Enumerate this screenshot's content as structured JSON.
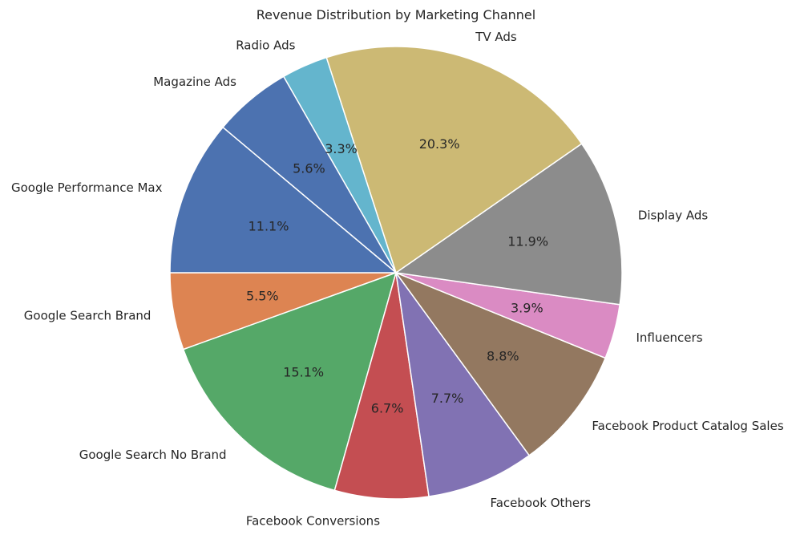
{
  "chart_data": {
    "type": "pie",
    "title": "Revenue Distribution by Marketing Channel",
    "start_angle_deg": 180,
    "direction": "counterclockwise",
    "slices": [
      {
        "label": "Google Search Brand",
        "value": 5.5,
        "pct_label": "5.5%",
        "color": "#dd8452"
      },
      {
        "label": "Google Search No Brand",
        "value": 15.1,
        "pct_label": "15.1%",
        "color": "#55a868"
      },
      {
        "label": "Facebook Conversions",
        "value": 6.7,
        "pct_label": "6.7%",
        "color": "#c44e52"
      },
      {
        "label": "Facebook Others",
        "value": 7.7,
        "pct_label": "7.7%",
        "color": "#8172b3"
      },
      {
        "label": "Facebook Product Catalog Sales",
        "value": 8.8,
        "pct_label": "8.8%",
        "color": "#937860"
      },
      {
        "label": "Influencers",
        "value": 3.9,
        "pct_label": "3.9%",
        "color": "#da8bc3"
      },
      {
        "label": "Display Ads",
        "value": 11.9,
        "pct_label": "11.9%",
        "color": "#8c8c8c"
      },
      {
        "label": "TV Ads",
        "value": 20.3,
        "pct_label": "20.3%",
        "color": "#ccb974"
      },
      {
        "label": "Radio Ads",
        "value": 3.3,
        "pct_label": "3.3%",
        "color": "#64b5cd"
      },
      {
        "label": "Magazine Ads",
        "value": 5.6,
        "pct_label": "5.6%",
        "color": "#4c72b0"
      },
      {
        "label": "Google Performance Max",
        "value": 11.1,
        "pct_label": "11.1%",
        "color": "#4c72b0"
      }
    ]
  }
}
